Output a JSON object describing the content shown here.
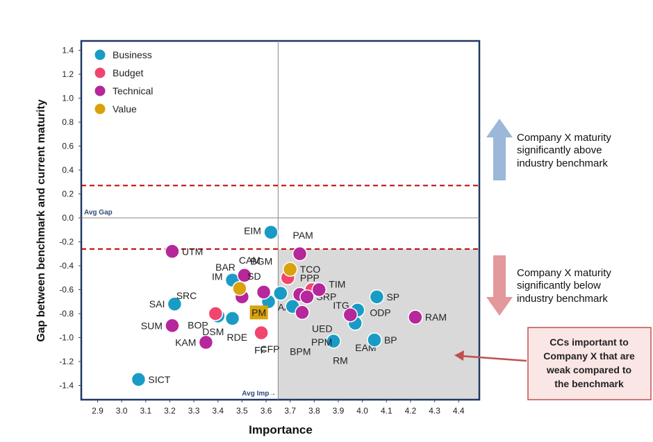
{
  "chart_data": {
    "type": "scatter",
    "title": "",
    "xlabel": "Importance",
    "ylabel": "Gap between benchmark and current maturity",
    "xlim": [
      2.85,
      4.45
    ],
    "ylim": [
      -1.5,
      1.5
    ],
    "xticks": [
      "2.9",
      "3.0",
      "3.1",
      "3.2",
      "3.3",
      "3.4",
      "3.5",
      "3.6",
      "3.7",
      "3.8",
      "3.9",
      "4.0",
      "4.1",
      "4.2",
      "4.3",
      "4.4"
    ],
    "yticks": [
      "1.4",
      "1.2",
      "1.0",
      "0.8",
      "0.6",
      "0.4",
      "0.2",
      "0.0",
      "-0.2",
      "-0.4",
      "-0.6",
      "-0.8",
      "-1.0",
      "-1.2",
      "-1.4"
    ],
    "avg_importance": 3.65,
    "avg_gap": 0.0,
    "threshold_upper": 0.27,
    "threshold_lower": -0.26,
    "avg_gap_label": "Avg Gap",
    "avg_imp_label": "Avg Imp→",
    "legend_position": "top-left",
    "series": [
      {
        "name": "Business",
        "color": "#1a9bc6",
        "points": [
          {
            "x": 3.07,
            "y": -1.35,
            "label": "SICT"
          },
          {
            "x": 3.22,
            "y": -0.72,
            "label": "SAI"
          },
          {
            "x": 3.62,
            "y": -0.12,
            "label": "EIM"
          },
          {
            "x": 3.46,
            "y": -0.52,
            "label": "IM"
          },
          {
            "x": 3.4,
            "y": -0.82,
            "label": "BOP"
          },
          {
            "x": 3.46,
            "y": -0.84,
            "label": "RDE"
          },
          {
            "x": 3.61,
            "y": -0.7,
            "label": "CFP"
          },
          {
            "x": 3.66,
            "y": -0.63,
            "label": "AA"
          },
          {
            "x": 3.71,
            "y": -0.74,
            "label": "BPM"
          },
          {
            "x": 3.88,
            "y": -1.03,
            "label": "RM"
          },
          {
            "x": 3.97,
            "y": -0.88,
            "label": "EAM"
          },
          {
            "x": 3.98,
            "y": -0.77,
            "label": "ITG"
          },
          {
            "x": 4.06,
            "y": -0.66,
            "label": "SP"
          },
          {
            "x": 4.05,
            "y": -1.02,
            "label": "BP"
          }
        ]
      },
      {
        "name": "Budget",
        "color": "#f0456d",
        "points": [
          {
            "x": 3.39,
            "y": -0.8,
            "label": "SRC"
          },
          {
            "x": 3.58,
            "y": -0.96,
            "label": "FF"
          },
          {
            "x": 3.69,
            "y": -0.5,
            "label": "BGM"
          },
          {
            "x": 3.79,
            "y": -0.6,
            "label": "PPP"
          }
        ]
      },
      {
        "name": "Technical",
        "color": "#b5279a",
        "points": [
          {
            "x": 3.21,
            "y": -0.28,
            "label": "UTM"
          },
          {
            "x": 3.21,
            "y": -0.9,
            "label": "SUM"
          },
          {
            "x": 3.35,
            "y": -1.04,
            "label": "KAM"
          },
          {
            "x": 3.51,
            "y": -0.48,
            "label": "CAM"
          },
          {
            "x": 3.5,
            "y": -0.66,
            "label": "DSM"
          },
          {
            "x": 3.59,
            "y": -0.62,
            "label": "SD"
          },
          {
            "x": 3.74,
            "y": -0.3,
            "label": "PAM"
          },
          {
            "x": 3.74,
            "y": -0.64,
            "label": "SRP"
          },
          {
            "x": 3.77,
            "y": -0.66,
            "label": "PPM"
          },
          {
            "x": 3.82,
            "y": -0.6,
            "label": "TIM"
          },
          {
            "x": 3.75,
            "y": -0.79,
            "label": "UED"
          },
          {
            "x": 3.95,
            "y": -0.81,
            "label": "ODP"
          },
          {
            "x": 4.22,
            "y": -0.83,
            "label": "RAM"
          }
        ]
      },
      {
        "name": "Value",
        "color": "#d9a20d",
        "points": [
          {
            "x": 3.7,
            "y": -0.43,
            "label": "TCO"
          },
          {
            "x": 3.49,
            "y": -0.59,
            "label": "BAR"
          },
          {
            "x": 3.57,
            "y": -0.79,
            "label": "PM",
            "square": true
          }
        ]
      }
    ]
  },
  "annotations": {
    "above": [
      "Company X maturity",
      "significantly above",
      "industry benchmark"
    ],
    "below": [
      "Company X maturity",
      "significantly below",
      "industry benchmark"
    ],
    "callout": [
      "CCs important to",
      "Company X that are",
      "weak compared to",
      "the benchmark"
    ]
  },
  "colors": {
    "plot_border": "#1f3864",
    "threshold": "#c00000",
    "quadrant_fill": "#d9d9d9",
    "up_arrow": "#9bb7d9",
    "down_arrow": "#e3989c",
    "callout_fill": "#fbe6e6",
    "callout_border": "#c0504d"
  }
}
